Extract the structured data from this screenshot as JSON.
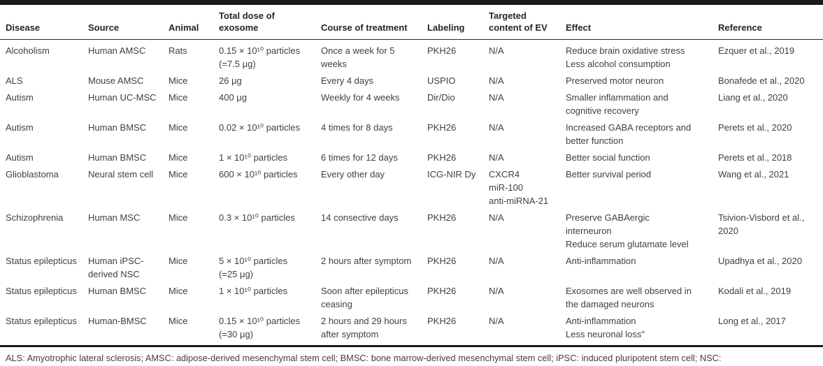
{
  "colors": {
    "text": "#3f3f3f",
    "heading": "#262626",
    "rule": "#1a1a1a",
    "background": "#ffffff"
  },
  "table": {
    "columns": [
      {
        "key": "disease",
        "label": "Disease"
      },
      {
        "key": "source",
        "label": "Source"
      },
      {
        "key": "animal",
        "label": "Animal"
      },
      {
        "key": "dose",
        "label": "Total dose of\nexosome"
      },
      {
        "key": "course",
        "label": "Course of treatment"
      },
      {
        "key": "labeling",
        "label": "Labeling"
      },
      {
        "key": "targeted",
        "label": "Targeted\ncontent of EV"
      },
      {
        "key": "effect",
        "label": "Effect"
      },
      {
        "key": "reference",
        "label": "Reference"
      }
    ],
    "rows": [
      {
        "disease": "Alcoholism",
        "source": "Human AMSC",
        "animal": "Rats",
        "dose": "0.15 × 10¹⁰ particles\n(=7.5 μg)",
        "course": "Once a week for 5\nweeks",
        "labeling": "PKH26",
        "targeted": "N/A",
        "effect": "Reduce brain oxidative stress\nLess alcohol consumption",
        "reference": "Ezquer et al., 2019"
      },
      {
        "disease": "ALS",
        "source": "Mouse AMSC",
        "animal": "Mice",
        "dose": "26 μg",
        "course": "Every 4 days",
        "labeling": "USPIO",
        "targeted": "N/A",
        "effect": "Preserved motor neuron",
        "reference": "Bonafede et al., 2020"
      },
      {
        "disease": "Autism",
        "source": "Human UC-MSC",
        "animal": "Mice",
        "dose": "400 μg",
        "course": "Weekly for 4 weeks",
        "labeling": "Dir/Dio",
        "targeted": "N/A",
        "effect": "Smaller inflammation and\ncognitive recovery",
        "reference": "Liang et al., 2020"
      },
      {
        "disease": "Autism",
        "source": "Human BMSC",
        "animal": "Mice",
        "dose": "0.02 × 10¹⁰ particles",
        "course": "4 times for 8 days",
        "labeling": "PKH26",
        "targeted": "N/A",
        "effect": "Increased GABA receptors and\nbetter function",
        "reference": "Perets et al., 2020"
      },
      {
        "disease": "Autism",
        "source": "Human BMSC",
        "animal": "Mice",
        "dose": "1 × 10¹⁰ particles",
        "course": "6 times for 12 days",
        "labeling": "PKH26",
        "targeted": "N/A",
        "effect": "Better social function",
        "reference": "Perets et al., 2018"
      },
      {
        "disease": "Glioblastoma",
        "source": "Neural stem cell",
        "animal": "Mice",
        "dose": "600 × 10¹⁰ particles",
        "course": "Every other day",
        "labeling": "ICG-NIR Dy",
        "targeted": "CXCR4\nmiR-100\nanti-miRNA-21",
        "effect": "Better survival period",
        "reference": "Wang et al., 2021"
      },
      {
        "disease": "Schizophrenia",
        "source": "Human MSC",
        "animal": "Mice",
        "dose": "0.3 × 10¹⁰ particles",
        "course": "14 consective days",
        "labeling": "PKH26",
        "targeted": "N/A",
        "effect": "Preserve GABAergic\ninterneuron\nReduce serum glutamate level",
        "reference": "Tsivion-Visbord et al.,\n2020"
      },
      {
        "disease": "Status epilepticus",
        "source": "Human iPSC-\nderived NSC",
        "animal": "Mice",
        "dose": "5 × 10¹⁰ particles\n(=25 μg)",
        "course": "2 hours after symptom",
        "labeling": "PKH26",
        "targeted": "N/A",
        "effect": "Anti-inflammation",
        "reference": "Upadhya et al., 2020"
      },
      {
        "disease": "Status epilepticus",
        "source": "Human BMSC",
        "animal": "Mice",
        "dose": "1 × 10¹⁰ particles",
        "course": "Soon after epilepticus\nceasing",
        "labeling": "PKH26",
        "targeted": "N/A",
        "effect": "Exosomes are well observed in\nthe damaged neurons",
        "reference": "Kodali et al., 2019"
      },
      {
        "disease": "Status epilepticus",
        "source": "Human-BMSC",
        "animal": "Mice",
        "dose": "0.15 × 10¹⁰ particles\n(=30 μg)",
        "course": "2 hours and 29 hours\nafter symptom",
        "labeling": "PKH26",
        "targeted": "N/A",
        "effect": "Anti-inflammation\nLess neuronal loss\"",
        "reference": "Long et al., 2017"
      }
    ]
  },
  "footnote": "ALS: Amyotrophic lateral sclerosis; AMSC: adipose-derived mesenchymal stem cell; BMSC: bone marrow-derived mesenchymal stem cell; iPSC: induced pluripotent stem cell; NSC:\nneuronal stem cell; UC-MSC: umbilical cord mesenchymal stem cell; USPIO: ultra-small superparamagnetic iron oxide nanoparticles."
}
